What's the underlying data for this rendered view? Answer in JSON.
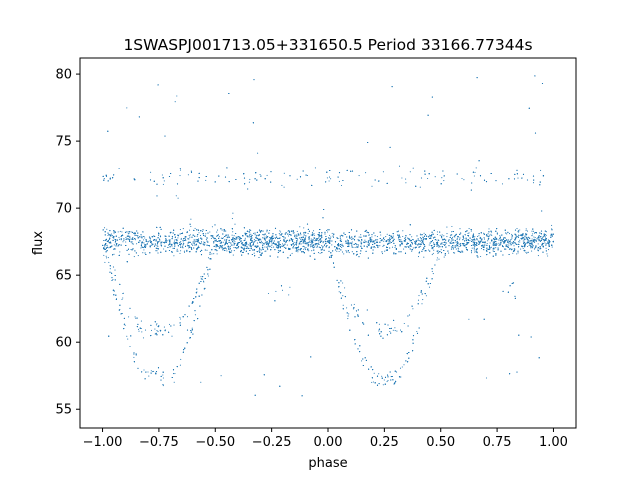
{
  "chart_data": {
    "type": "scatter",
    "title": "1SWASPJ001713.05+331650.5 Period 33166.77344s",
    "xlabel": "phase",
    "ylabel": "flux",
    "xlim": [
      -1.1,
      1.1
    ],
    "ylim": [
      53.6,
      81.2
    ],
    "xticks": [
      -1.0,
      -0.75,
      -0.5,
      -0.25,
      0.0,
      0.25,
      0.5,
      0.75,
      1.0
    ],
    "xtick_labels": [
      "−1.00",
      "−0.75",
      "−0.50",
      "−0.25",
      "0.00",
      "0.25",
      "0.50",
      "0.75",
      "1.00"
    ],
    "yticks": [
      55,
      60,
      65,
      70,
      75,
      80
    ],
    "ytick_labels": [
      "55",
      "60",
      "65",
      "70",
      "75",
      "80"
    ],
    "grid": false,
    "legend": "none",
    "marker_color": "#1f77b4",
    "series": [
      {
        "description_points": "phase-folded light curve, phase range -1 to 1 (one period repeated twice)",
        "baseline_flux": 67.5,
        "upper_band_flux": 72.3,
        "deep_eclipse": {
          "centers": [
            -0.75,
            0.25
          ],
          "min_flux": 57.3
        },
        "shallow_eclipse": {
          "centers": [
            -0.75,
            0.25
          ],
          "min_flux": 61.0
        },
        "eclipse_ingress_egress": [
          [
            -1.0,
            -0.52
          ],
          [
            0.0,
            0.48
          ]
        ],
        "secondary_dips": {
          "centers": [
            -0.22,
            0.78
          ],
          "min_flux": 64.0
        }
      }
    ]
  }
}
